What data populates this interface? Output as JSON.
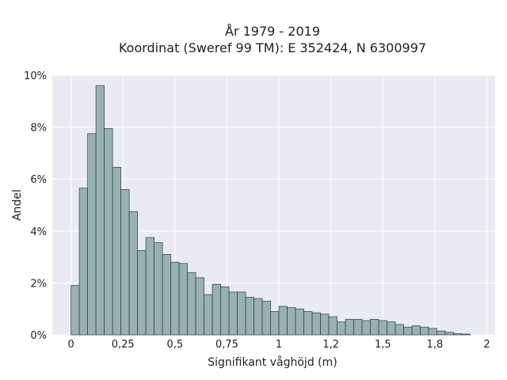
{
  "chart_data": {
    "type": "histogram",
    "title": "År 1979 - 2019",
    "subtitle": "Koordinat (Sweref 99 TM): E 352424, N 6300997",
    "xlabel": "Signifikant våghöjd (m)",
    "ylabel": "Andel",
    "xlim": [
      -0.09,
      2.04
    ],
    "ylim": [
      0,
      10
    ],
    "grid": true,
    "bin_width": 0.04,
    "bin_start": 0.0,
    "bar_color": "#97b2b1",
    "edge_color": "#2f3f3e",
    "background_color": "#eaeaf2",
    "x_ticks": [
      {
        "value": 0,
        "label": "0"
      },
      {
        "value": 0.25,
        "label": "0,25"
      },
      {
        "value": 0.5,
        "label": "0,5"
      },
      {
        "value": 0.75,
        "label": "0,75"
      },
      {
        "value": 1.0,
        "label": "1"
      },
      {
        "value": 1.25,
        "label": "1,2"
      },
      {
        "value": 1.5,
        "label": "1,5"
      },
      {
        "value": 1.75,
        "label": "1,8"
      },
      {
        "value": 2.0,
        "label": "2"
      }
    ],
    "y_ticks": [
      {
        "value": 0,
        "label": "0%"
      },
      {
        "value": 2,
        "label": "2%"
      },
      {
        "value": 4,
        "label": "4%"
      },
      {
        "value": 6,
        "label": "6%"
      },
      {
        "value": 8,
        "label": "8%"
      },
      {
        "value": 10,
        "label": "10%"
      }
    ],
    "values": [
      1.9,
      5.65,
      7.75,
      9.6,
      7.95,
      6.45,
      5.6,
      4.75,
      3.25,
      3.75,
      3.55,
      3.1,
      2.8,
      2.75,
      2.4,
      2.2,
      1.55,
      1.95,
      1.85,
      1.65,
      1.65,
      1.45,
      1.4,
      1.3,
      0.9,
      1.1,
      1.05,
      1.0,
      0.9,
      0.85,
      0.8,
      0.7,
      0.5,
      0.6,
      0.6,
      0.55,
      0.6,
      0.55,
      0.5,
      0.4,
      0.3,
      0.35,
      0.3,
      0.25,
      0.15,
      0.1,
      0.05,
      0.03
    ]
  }
}
